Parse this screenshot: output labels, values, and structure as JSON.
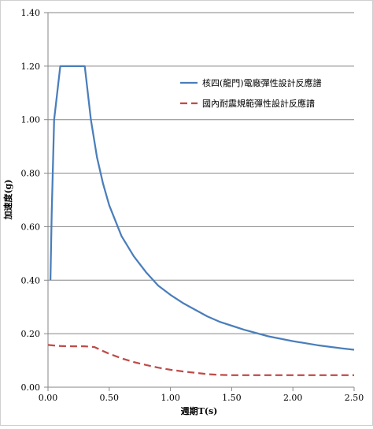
{
  "chart_data": {
    "type": "line",
    "xlabel": "週期T(s)",
    "ylabel": "加速度(g)",
    "xlim": [
      0,
      2.5
    ],
    "ylim": [
      0,
      1.4
    ],
    "x_ticks": [
      "0.00",
      "0.50",
      "1.00",
      "1.50",
      "2.00",
      "2.50"
    ],
    "y_ticks": [
      "0.00",
      "0.20",
      "0.40",
      "0.60",
      "0.80",
      "1.00",
      "1.20",
      "1.40"
    ],
    "grid": "horizontal",
    "legend_position": "top-right",
    "series": [
      {
        "name": "核四(龍門)電廠彈性設計反應譜",
        "color": "#4a7ebb",
        "style": "solid",
        "x": [
          0.02,
          0.03,
          0.05,
          0.1,
          0.3,
          0.35,
          0.4,
          0.45,
          0.5,
          0.6,
          0.7,
          0.8,
          0.9,
          1.0,
          1.1,
          1.2,
          1.3,
          1.4,
          1.5,
          1.6,
          1.8,
          2.0,
          2.2,
          2.4,
          2.5
        ],
        "y": [
          0.4,
          0.65,
          1.0,
          1.2,
          1.2,
          1.0,
          0.86,
          0.76,
          0.68,
          0.565,
          0.49,
          0.43,
          0.38,
          0.345,
          0.315,
          0.29,
          0.265,
          0.245,
          0.23,
          0.215,
          0.19,
          0.172,
          0.157,
          0.145,
          0.14
        ]
      },
      {
        "name": "國內耐震規範彈性設計反應譜",
        "color": "#be4b48",
        "style": "dashed",
        "x": [
          0.0,
          0.1,
          0.2,
          0.3,
          0.38,
          0.45,
          0.5,
          0.6,
          0.7,
          0.8,
          0.9,
          1.0,
          1.1,
          1.2,
          1.3,
          1.4,
          1.5,
          1.6,
          2.0,
          2.5
        ],
        "y": [
          0.158,
          0.154,
          0.153,
          0.153,
          0.15,
          0.135,
          0.125,
          0.108,
          0.094,
          0.083,
          0.073,
          0.065,
          0.059,
          0.054,
          0.049,
          0.046,
          0.045,
          0.045,
          0.045,
          0.045
        ]
      }
    ]
  }
}
